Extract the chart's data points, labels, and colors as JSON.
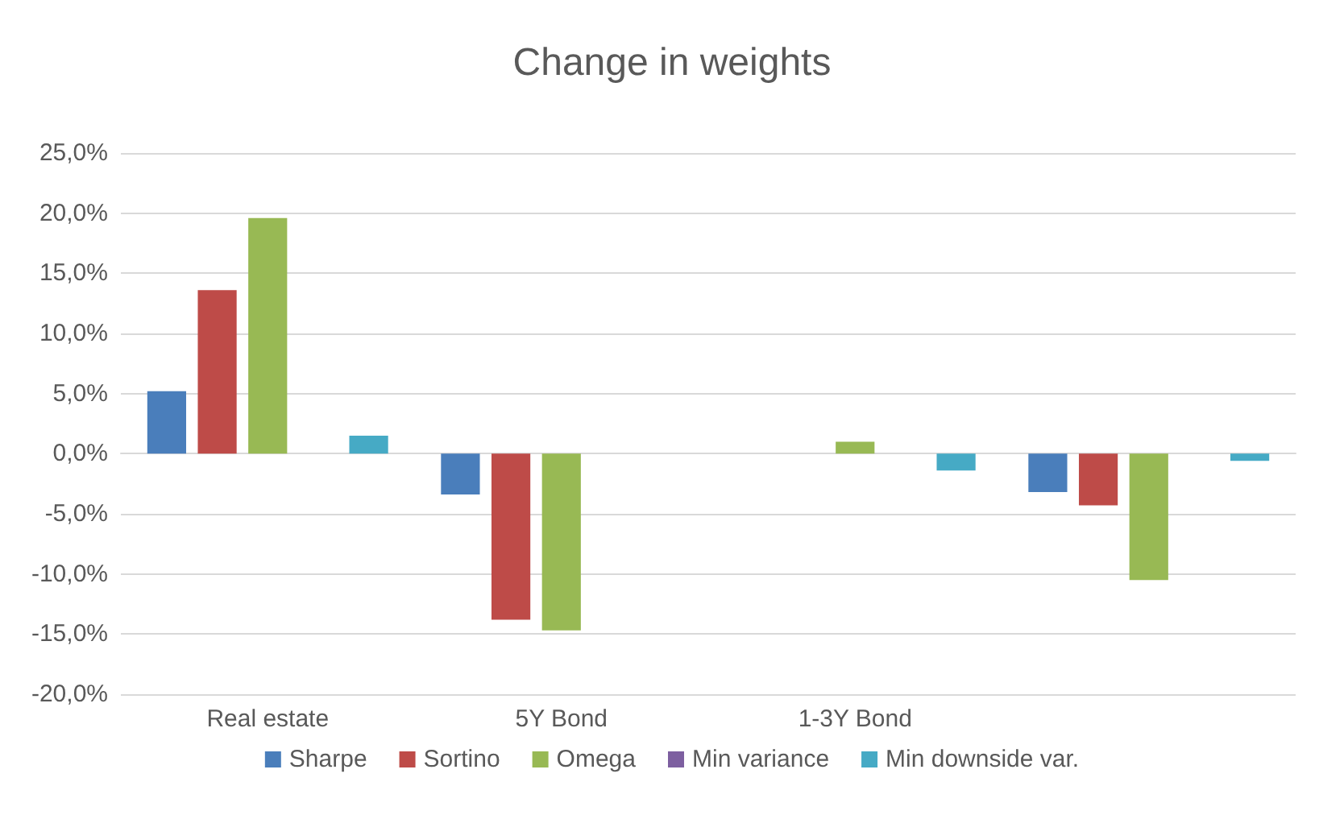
{
  "chart_data": {
    "type": "bar",
    "title": "Change in weights",
    "categories": [
      "Real estate",
      "5Y Bond",
      "1-3Y Bond",
      null
    ],
    "series": [
      {
        "name": "Sharpe",
        "color": "#4a7ebb",
        "values": [
          5.2,
          -3.4,
          0,
          -3.2
        ]
      },
      {
        "name": "Sortino",
        "color": "#be4b48",
        "values": [
          13.6,
          -13.8,
          0,
          -4.3
        ]
      },
      {
        "name": "Omega",
        "color": "#98b954",
        "values": [
          19.6,
          -14.7,
          1.0,
          -10.5
        ]
      },
      {
        "name": "Min variance",
        "color": "#7d5fa0",
        "values": [
          0,
          0,
          0,
          0
        ]
      },
      {
        "name": "Min downside var.",
        "color": "#46aac5",
        "values": [
          1.5,
          0,
          -1.4,
          -0.6
        ]
      }
    ],
    "ylim": [
      -20,
      25
    ],
    "yticks": [
      {
        "value": -20,
        "label": "-20,0%"
      },
      {
        "value": -15,
        "label": "-15,0%"
      },
      {
        "value": -10,
        "label": "-10,0%"
      },
      {
        "value": -5,
        "label": "-5,0%"
      },
      {
        "value": 0,
        "label": "0,0%"
      },
      {
        "value": 5,
        "label": "5,0%"
      },
      {
        "value": 10,
        "label": "10,0%"
      },
      {
        "value": 15,
        "label": "15,0%"
      },
      {
        "value": 20,
        "label": "20,0%"
      },
      {
        "value": 25,
        "label": "25,0%"
      }
    ],
    "grid": "y",
    "legend": "bottom"
  }
}
